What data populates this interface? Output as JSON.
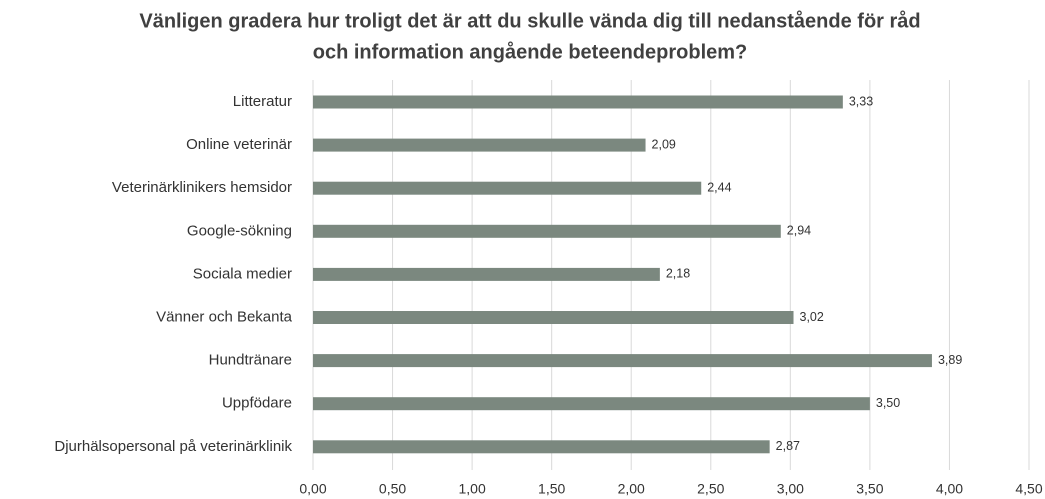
{
  "chart_data": {
    "type": "barh",
    "title": [
      "Vänligen gradera hur troligt det är att du skulle vända dig till nedanstående för råd",
      "och information angående beteendeproblem?"
    ],
    "categories": [
      "Litteratur",
      "Online veterinär",
      "Veterinärklinikers hemsidor",
      "Google-sökning",
      "Sociala medier",
      "Vänner och Bekanta",
      "Hundtränare",
      "Uppfödare",
      "Djurhälsopersonal på veterinärklinik"
    ],
    "values": [
      3.33,
      2.09,
      2.44,
      2.94,
      2.18,
      3.02,
      3.89,
      3.5,
      2.87
    ],
    "value_labels": [
      "3,33",
      "2,09",
      "2,44",
      "2,94",
      "2,18",
      "3,02",
      "3,89",
      "3,50",
      "2,87"
    ],
    "color": "#7b887f",
    "xlim": [
      0,
      4.5
    ],
    "xticks": [
      {
        "value": 0,
        "label": "0,00"
      },
      {
        "value": 0.5,
        "label": "0,50"
      },
      {
        "value": 1,
        "label": "1,00"
      },
      {
        "value": 1.5,
        "label": "1,50"
      },
      {
        "value": 2,
        "label": "2,00"
      },
      {
        "value": 2.5,
        "label": "2,50"
      },
      {
        "value": 3,
        "label": "3,00"
      },
      {
        "value": 3.5,
        "label": "3,50"
      },
      {
        "value": 4,
        "label": "4,00"
      },
      {
        "value": 4.5,
        "label": "4,50"
      }
    ],
    "grid": true
  }
}
